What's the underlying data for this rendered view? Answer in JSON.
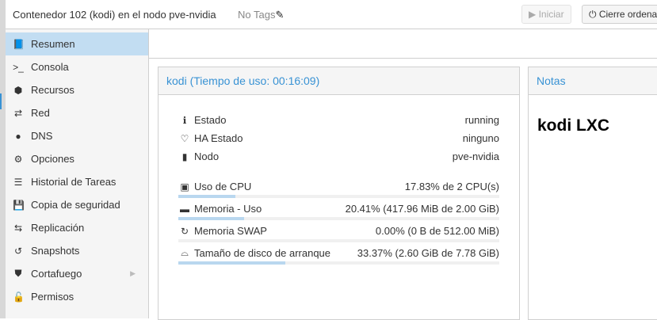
{
  "header": {
    "title": "Contenedor 102 (kodi) en el nodo pve-nvidia",
    "tags": "No Tags",
    "start_label": "Iniciar",
    "shutdown_label": "Cierre ordena"
  },
  "sidebar": {
    "items": [
      {
        "label": "Resumen",
        "icon": "book-icon",
        "glyph": "📘"
      },
      {
        "label": "Consola",
        "icon": "terminal-icon",
        "glyph": ">_"
      },
      {
        "label": "Recursos",
        "icon": "cube-icon",
        "glyph": "⬢"
      },
      {
        "label": "Red",
        "icon": "exchange-icon",
        "glyph": "⇄"
      },
      {
        "label": "DNS",
        "icon": "globe-icon",
        "glyph": "●"
      },
      {
        "label": "Opciones",
        "icon": "gear-icon",
        "glyph": "⚙"
      },
      {
        "label": "Historial de Tareas",
        "icon": "list-icon",
        "glyph": "☰"
      },
      {
        "label": "Copia de seguridad",
        "icon": "floppy-icon",
        "glyph": "💾"
      },
      {
        "label": "Replicación",
        "icon": "retweet-icon",
        "glyph": "⇆"
      },
      {
        "label": "Snapshots",
        "icon": "history-icon",
        "glyph": "↺"
      },
      {
        "label": "Cortafuego",
        "icon": "shield-icon",
        "glyph": "⛊"
      },
      {
        "label": "Permisos",
        "icon": "unlock-icon",
        "glyph": "🔓"
      }
    ]
  },
  "status": {
    "title": "kodi (Tiempo de uso: 00:16:09)",
    "info": [
      {
        "label": "Estado",
        "value": "running",
        "icon": "info-icon",
        "glyph": "ℹ"
      },
      {
        "label": "HA Estado",
        "value": "ninguno",
        "icon": "heartbeat-icon",
        "glyph": "♡"
      },
      {
        "label": "Nodo",
        "value": "pve-nvidia",
        "icon": "building-icon",
        "glyph": "▮"
      }
    ],
    "usage": [
      {
        "label": "Uso de CPU",
        "value": "17.83% de 2 CPU(s)",
        "percent": 17.83,
        "icon": "cpu-icon",
        "glyph": "▣"
      },
      {
        "label": "Memoria - Uso",
        "value": "20.41% (417.96 MiB de 2.00 GiB)",
        "percent": 20.41,
        "icon": "memory-icon",
        "glyph": "▬"
      },
      {
        "label": "Memoria SWAP",
        "value": "0.00% (0 B de 512.00 MiB)",
        "percent": 0,
        "icon": "refresh-icon",
        "glyph": "↻"
      },
      {
        "label": "Tamaño de disco de arranque",
        "value": "33.37% (2.60 GiB de 7.78 GiB)",
        "percent": 33.37,
        "icon": "hdd-icon",
        "glyph": "⌓"
      }
    ]
  },
  "notes": {
    "title": "Notas",
    "content": "kodi LXC"
  },
  "colors": {
    "accent": "#3892d4",
    "selected": "#c2ddf2",
    "bar": "#b9d7ef"
  }
}
